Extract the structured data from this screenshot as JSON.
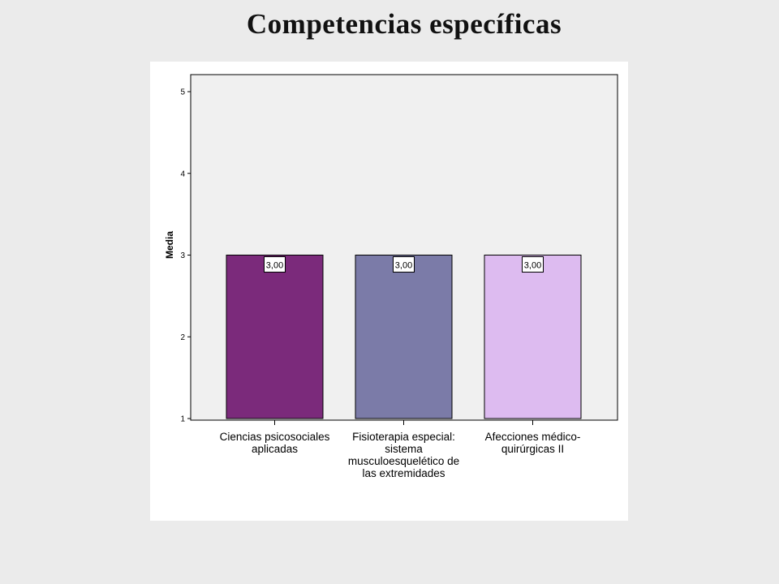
{
  "slide": {
    "title": "Competencias específicas"
  },
  "chart_data": {
    "type": "bar",
    "title": "Competencias específicas",
    "xlabel": "",
    "ylabel": "Media",
    "ylim": [
      1,
      5
    ],
    "yticks": [
      1,
      2,
      3,
      4,
      5
    ],
    "grid": false,
    "legend": "none",
    "categories": [
      "Ciencias psicosociales aplicadas",
      "Fisioterapia especial: sistema musculoesquelético de las extremidades",
      "Afecciones médico-quirúrgicas II"
    ],
    "category_label_lines": [
      [
        "Ciencias psicosociales",
        "aplicadas"
      ],
      [
        "Fisioterapia especial:",
        "sistema",
        "musculoesquelético de",
        "las extremidades"
      ],
      [
        "Afecciones médico-",
        "quirúrgicas II"
      ]
    ],
    "values": [
      3.0,
      3.0,
      3.0
    ],
    "data_labels": [
      "3,00",
      "3,00",
      "3,00"
    ],
    "colors": [
      "#7b2a7b",
      "#7b7ba8",
      "#ddbbf0"
    ],
    "plot_background": "#f0f0f0"
  }
}
